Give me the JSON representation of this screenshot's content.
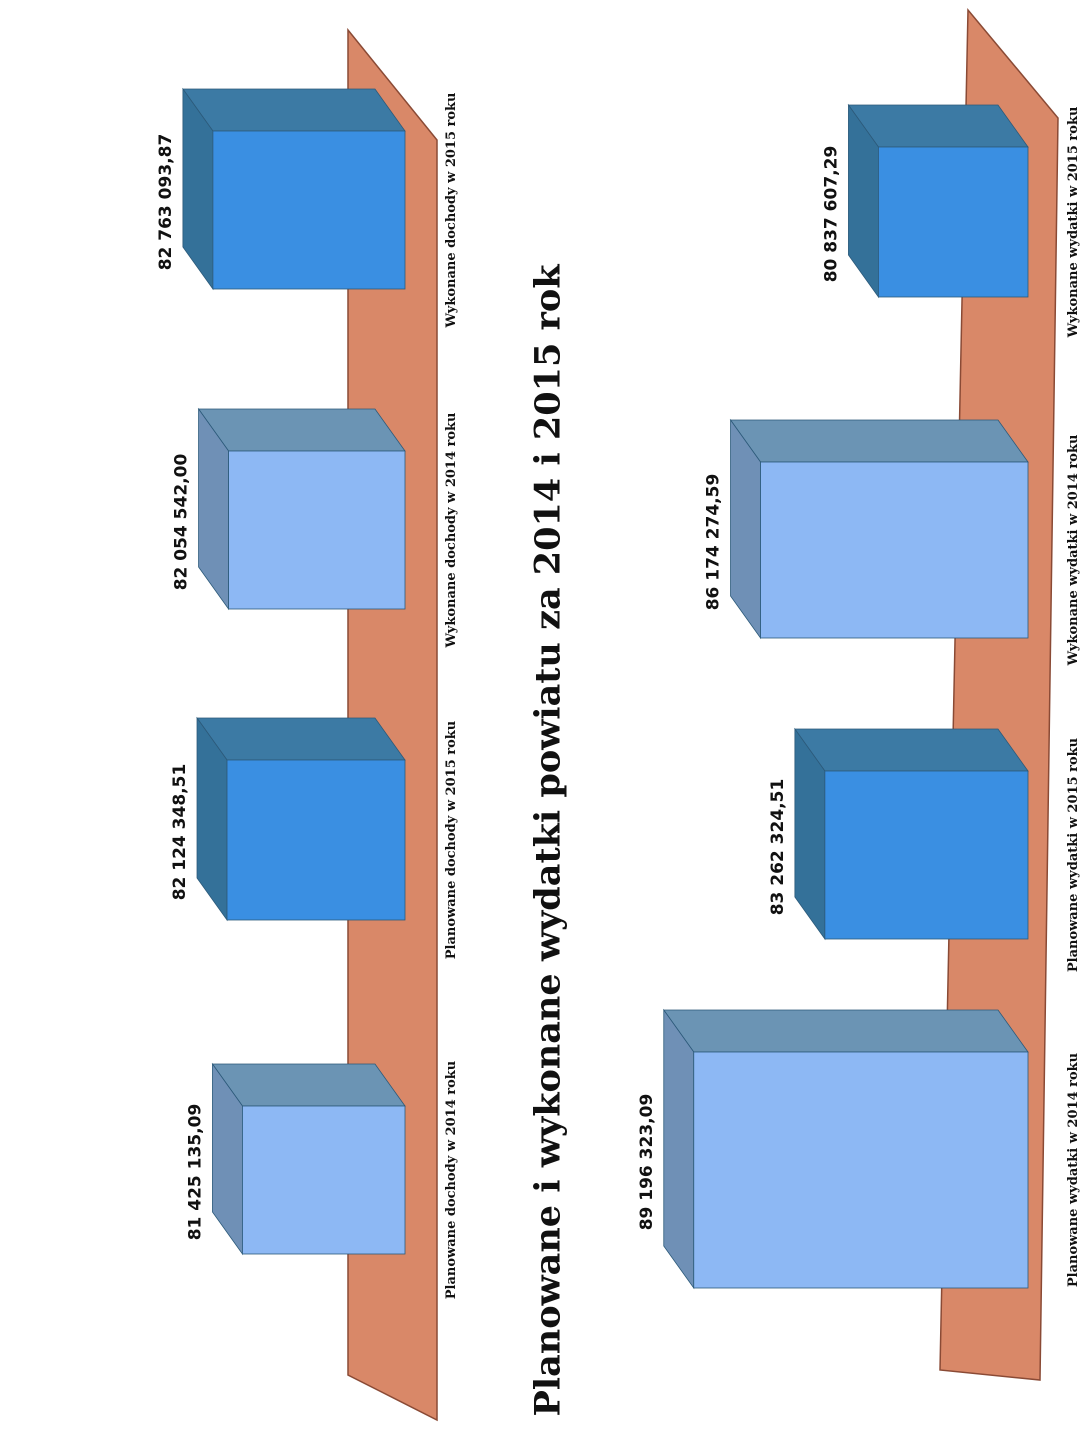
{
  "title": "Planowane i wykonane wydatki powiatu za 2014 i 2015 rok",
  "colors": {
    "floor": "#d98868",
    "floor_edge": "#8a4a35",
    "light_front": "#8db8f4",
    "light_top": "#6b94b4",
    "light_side": "#6f90b6",
    "dark_front": "#3a8fe2",
    "dark_top": "#3c7aa4",
    "dark_side": "#347199"
  },
  "chart_data": [
    {
      "type": "bar",
      "title": "",
      "categories": [
        "Planowane dochody w 2014 roku",
        "Planowane dochody w 2015 roku",
        "Wykonane dochody w 2014 roku",
        "Wykonane dochody w 2015 roku"
      ],
      "values": [
        81425135.09,
        82124348.51,
        82054542.0,
        82763093.87
      ],
      "data_labels": [
        "81 425 135,09",
        "82 124 348,51",
        "82 054 542,00",
        "82 763 093,87"
      ],
      "bar_styles": [
        "light",
        "dark",
        "light",
        "dark"
      ],
      "three_d": true,
      "orientation": "rotated 90° counter-clockwise",
      "grid": false,
      "legend": "none"
    },
    {
      "type": "bar",
      "title": "Planowane i wykonane wydatki powiatu za 2014 i 2015 rok",
      "categories": [
        "Planowane wydatki w 2014 roku",
        "Planowane wydatki w 2015 roku",
        "Wykonane wydatki w 2014 roku",
        "Wykonane wydatki w 2015 roku"
      ],
      "values": [
        89196323.09,
        83262324.51,
        86174274.59,
        80837607.29
      ],
      "data_labels": [
        "89 196 323,09",
        "83 262 324,51",
        "86 174 274,59",
        "80 837 607,29"
      ],
      "bar_styles": [
        "light",
        "dark",
        "light",
        "dark"
      ],
      "three_d": true,
      "orientation": "rotated 90° counter-clockwise",
      "grid": false,
      "legend": "none"
    }
  ]
}
